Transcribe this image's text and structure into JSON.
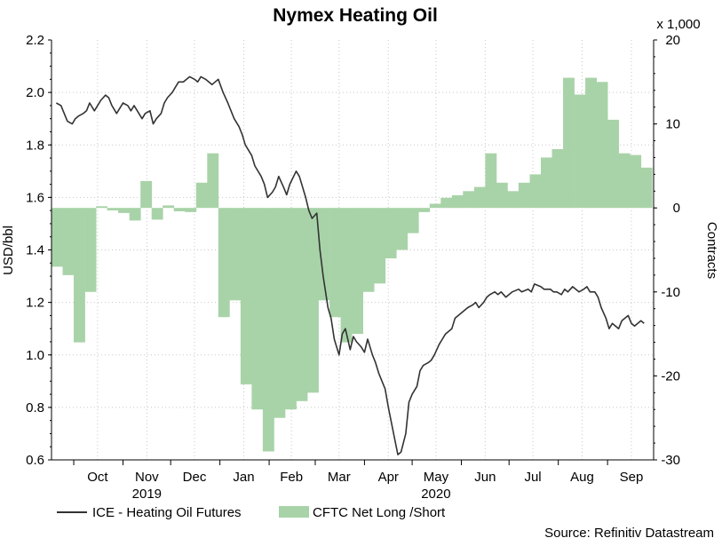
{
  "chart_data": {
    "type": "line+area",
    "title": "Nymex Heating Oil",
    "source": "Source: Refinitiv Datastream",
    "ylabel_left": "USD/bbl",
    "ylabel_right": "Contracts",
    "right_multiplier_label": "x 1,000",
    "ylim_left": [
      0.6,
      2.2
    ],
    "ylim_right": [
      -30,
      20
    ],
    "yticks_left": [
      "0.6",
      "0.8",
      "1.0",
      "1.2",
      "1.4",
      "1.6",
      "1.8",
      "2.0",
      "2.2"
    ],
    "yticks_right": [
      "-30",
      "-20",
      "-10",
      "0",
      "10",
      "20"
    ],
    "x_months": [
      "Oct",
      "Nov",
      "Dec",
      "Jan",
      "Feb",
      "Mar",
      "Apr",
      "May",
      "Jun",
      "Jul",
      "Aug",
      "Sep"
    ],
    "x_years": [
      "2019",
      "2020"
    ],
    "grid": true,
    "legend_position": "bottom-left",
    "colors": {
      "line": "#333333",
      "area": "#a8d3a8",
      "grid": "#c8c8c8"
    },
    "series": [
      {
        "name": "ICE - Heating Oil Futures",
        "type": "line",
        "axis": "left",
        "x": [
          "2019-09-20",
          "2019-09-23",
          "2019-09-25",
          "2019-09-27",
          "2019-09-30",
          "2019-10-02",
          "2019-10-04",
          "2019-10-07",
          "2019-10-09",
          "2019-10-11",
          "2019-10-14",
          "2019-10-16",
          "2019-10-18",
          "2019-10-21",
          "2019-10-23",
          "2019-10-25",
          "2019-10-28",
          "2019-10-30",
          "2019-11-01",
          "2019-11-04",
          "2019-11-06",
          "2019-11-08",
          "2019-11-11",
          "2019-11-13",
          "2019-11-15",
          "2019-11-18",
          "2019-11-20",
          "2019-11-22",
          "2019-11-25",
          "2019-11-27",
          "2019-11-29",
          "2019-12-02",
          "2019-12-04",
          "2019-12-06",
          "2019-12-09",
          "2019-12-11",
          "2019-12-13",
          "2019-12-16",
          "2019-12-18",
          "2019-12-20",
          "2019-12-23",
          "2019-12-27",
          "2019-12-31",
          "2020-01-03",
          "2020-01-06",
          "2020-01-08",
          "2020-01-10",
          "2020-01-13",
          "2020-01-15",
          "2020-01-17",
          "2020-01-21",
          "2020-01-23",
          "2020-01-27",
          "2020-01-29",
          "2020-01-31",
          "2020-02-03",
          "2020-02-05",
          "2020-02-07",
          "2020-02-10",
          "2020-02-12",
          "2020-02-14",
          "2020-02-18",
          "2020-02-20",
          "2020-02-24",
          "2020-02-26",
          "2020-02-28",
          "2020-03-02",
          "2020-03-04",
          "2020-03-06",
          "2020-03-09",
          "2020-03-11",
          "2020-03-13",
          "2020-03-16",
          "2020-03-18",
          "2020-03-20",
          "2020-03-23",
          "2020-03-25",
          "2020-03-27",
          "2020-03-30",
          "2020-04-01",
          "2020-04-03",
          "2020-04-06",
          "2020-04-08",
          "2020-04-10",
          "2020-04-14",
          "2020-04-16",
          "2020-04-20",
          "2020-04-22",
          "2020-04-24",
          "2020-04-27",
          "2020-04-29",
          "2020-05-01",
          "2020-05-04",
          "2020-05-06",
          "2020-05-08",
          "2020-05-11",
          "2020-05-13",
          "2020-05-15",
          "2020-05-18",
          "2020-05-20",
          "2020-05-22",
          "2020-05-26",
          "2020-05-28",
          "2020-06-01",
          "2020-06-03",
          "2020-06-05",
          "2020-06-08",
          "2020-06-10",
          "2020-06-12",
          "2020-06-15",
          "2020-06-17",
          "2020-06-19",
          "2020-06-22",
          "2020-06-24",
          "2020-06-26",
          "2020-06-29",
          "2020-07-01",
          "2020-07-03",
          "2020-07-07",
          "2020-07-09",
          "2020-07-13",
          "2020-07-15",
          "2020-07-17",
          "2020-07-21",
          "2020-07-23",
          "2020-07-27",
          "2020-07-29",
          "2020-07-31",
          "2020-08-03",
          "2020-08-05",
          "2020-08-07",
          "2020-08-10",
          "2020-08-12",
          "2020-08-14",
          "2020-08-17",
          "2020-08-19",
          "2020-08-21",
          "2020-08-24",
          "2020-08-26",
          "2020-08-28",
          "2020-08-31",
          "2020-09-02",
          "2020-09-04",
          "2020-09-08",
          "2020-09-10",
          "2020-09-14",
          "2020-09-16",
          "2020-09-18",
          "2020-09-22",
          "2020-09-24"
        ],
        "values": [
          1.96,
          1.95,
          1.92,
          1.89,
          1.88,
          1.9,
          1.91,
          1.92,
          1.93,
          1.96,
          1.93,
          1.95,
          1.97,
          1.99,
          1.98,
          1.95,
          1.92,
          1.94,
          1.96,
          1.95,
          1.93,
          1.95,
          1.92,
          1.9,
          1.92,
          1.93,
          1.88,
          1.9,
          1.92,
          1.96,
          1.98,
          2.0,
          2.02,
          2.04,
          2.04,
          2.05,
          2.06,
          2.05,
          2.04,
          2.06,
          2.05,
          2.03,
          2.05,
          2.0,
          1.96,
          1.93,
          1.9,
          1.87,
          1.84,
          1.8,
          1.76,
          1.72,
          1.68,
          1.65,
          1.6,
          1.62,
          1.64,
          1.68,
          1.64,
          1.61,
          1.65,
          1.7,
          1.68,
          1.6,
          1.55,
          1.52,
          1.54,
          1.4,
          1.3,
          1.18,
          1.14,
          1.06,
          1.0,
          1.08,
          1.1,
          1.02,
          1.07,
          1.05,
          1.03,
          1.01,
          1.06,
          1.0,
          0.97,
          0.93,
          0.87,
          0.8,
          0.68,
          0.62,
          0.63,
          0.7,
          0.82,
          0.85,
          0.88,
          0.94,
          0.96,
          0.97,
          0.98,
          1.0,
          1.04,
          1.06,
          1.08,
          1.1,
          1.14,
          1.16,
          1.17,
          1.18,
          1.19,
          1.2,
          1.18,
          1.2,
          1.22,
          1.23,
          1.24,
          1.23,
          1.24,
          1.22,
          1.23,
          1.24,
          1.25,
          1.24,
          1.25,
          1.24,
          1.27,
          1.26,
          1.25,
          1.25,
          1.24,
          1.24,
          1.23,
          1.25,
          1.24,
          1.26,
          1.25,
          1.24,
          1.25,
          1.26,
          1.24,
          1.24,
          1.22,
          1.18,
          1.14,
          1.1,
          1.12,
          1.1,
          1.13,
          1.15,
          1.12,
          1.11,
          1.13,
          1.12
        ]
      },
      {
        "name": "CFTC Net Long /Short",
        "type": "area",
        "axis": "right",
        "x": [
          "2019-09-17",
          "2019-09-24",
          "2019-10-01",
          "2019-10-08",
          "2019-10-15",
          "2019-10-22",
          "2019-10-29",
          "2019-11-05",
          "2019-11-12",
          "2019-11-19",
          "2019-11-26",
          "2019-12-03",
          "2019-12-10",
          "2019-12-17",
          "2019-12-24",
          "2019-12-31",
          "2020-01-07",
          "2020-01-14",
          "2020-01-21",
          "2020-01-28",
          "2020-02-04",
          "2020-02-11",
          "2020-02-18",
          "2020-02-25",
          "2020-03-03",
          "2020-03-10",
          "2020-03-17",
          "2020-03-24",
          "2020-03-31",
          "2020-04-07",
          "2020-04-14",
          "2020-04-21",
          "2020-04-28",
          "2020-05-05",
          "2020-05-12",
          "2020-05-19",
          "2020-05-26",
          "2020-06-02",
          "2020-06-09",
          "2020-06-16",
          "2020-06-23",
          "2020-06-30",
          "2020-07-07",
          "2020-07-14",
          "2020-07-21",
          "2020-07-28",
          "2020-08-04",
          "2020-08-11",
          "2020-08-18",
          "2020-08-25",
          "2020-09-01",
          "2020-09-08",
          "2020-09-15",
          "2020-09-22"
        ],
        "values": [
          -7.0,
          -8.0,
          -16.0,
          -10.0,
          0.2,
          -0.3,
          -0.6,
          -1.5,
          3.2,
          -1.4,
          0.3,
          -0.4,
          -0.5,
          3.0,
          6.5,
          -13.0,
          -11.0,
          -21.0,
          -24.0,
          -29.0,
          -25.0,
          -24.0,
          -23.0,
          -22.0,
          -11.0,
          -13.0,
          -16.0,
          -15.0,
          -10.0,
          -9.0,
          -6.0,
          -5.0,
          -3.0,
          -0.5,
          0.5,
          1.2,
          1.5,
          2.0,
          2.5,
          6.5,
          3.0,
          2.0,
          3.0,
          4.0,
          6.0,
          7.0,
          15.5,
          13.5,
          15.5,
          15.0,
          10.5,
          6.5,
          6.3,
          4.8
        ]
      }
    ]
  }
}
